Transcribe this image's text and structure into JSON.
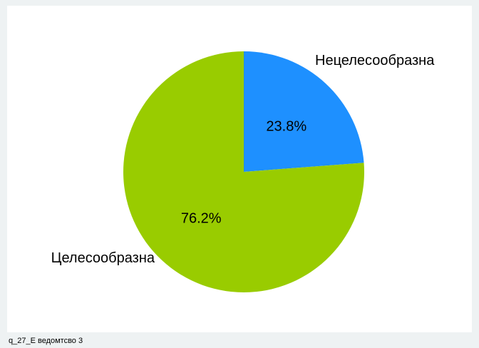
{
  "chart_data": {
    "type": "pie",
    "title": "",
    "slices": [
      {
        "label": "Нецелесообразна",
        "value": 23.8,
        "value_label": "23.8%",
        "color": "#1e90ff"
      },
      {
        "label": "Целесообразна",
        "value": 76.2,
        "value_label": "76.2%",
        "color": "#99cc00"
      }
    ],
    "start": "12 o'clock",
    "direction": "clockwise",
    "legend": "none"
  },
  "footnote": "q_27_E ведомтсво 3"
}
